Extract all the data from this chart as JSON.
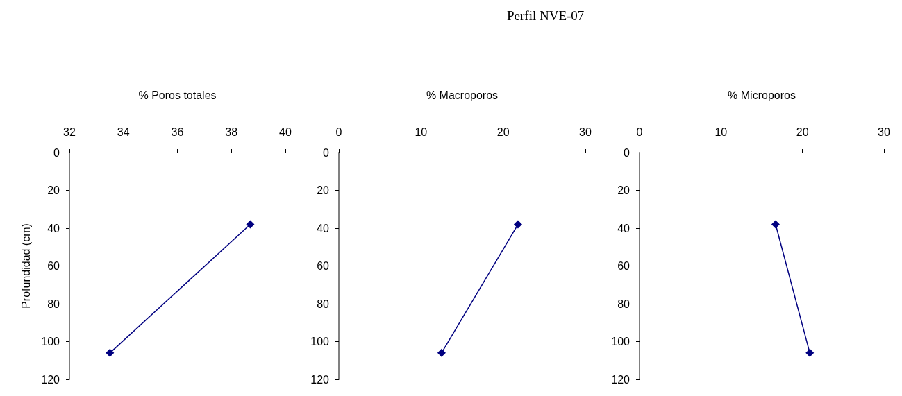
{
  "chart_data": [
    {
      "type": "line",
      "xlabel": "% Poros totales",
      "ylabel": "Profundidad (cm)",
      "xlim": [
        32,
        40
      ],
      "xticks": [
        32,
        34,
        36,
        38,
        40
      ],
      "ylim": [
        120,
        0
      ],
      "yticks": [
        0,
        20,
        40,
        60,
        80,
        100,
        120
      ],
      "marker": "diamond",
      "series": [
        {
          "color": "#000080",
          "x": [
            38.7,
            33.5
          ],
          "values": [
            38,
            106
          ]
        }
      ]
    },
    {
      "type": "line",
      "title": "Perfil NVE-07",
      "xlabel": "% Macroporos",
      "xlim": [
        0,
        30
      ],
      "xticks": [
        0,
        10,
        20,
        30
      ],
      "ylim": [
        120,
        0
      ],
      "yticks": [
        0,
        20,
        40,
        60,
        80,
        100,
        120
      ],
      "marker": "diamond",
      "series": [
        {
          "color": "#000080",
          "x": [
            21.8,
            12.5
          ],
          "values": [
            38,
            106
          ]
        }
      ]
    },
    {
      "type": "line",
      "xlabel": "% Microporos",
      "xlim": [
        0,
        30
      ],
      "xticks": [
        0,
        10,
        20,
        30
      ],
      "ylim": [
        120,
        0
      ],
      "yticks": [
        0,
        20,
        40,
        60,
        80,
        100,
        120
      ],
      "marker": "diamond",
      "series": [
        {
          "color": "#000080",
          "x": [
            16.7,
            20.9
          ],
          "values": [
            38,
            106
          ]
        }
      ]
    }
  ]
}
